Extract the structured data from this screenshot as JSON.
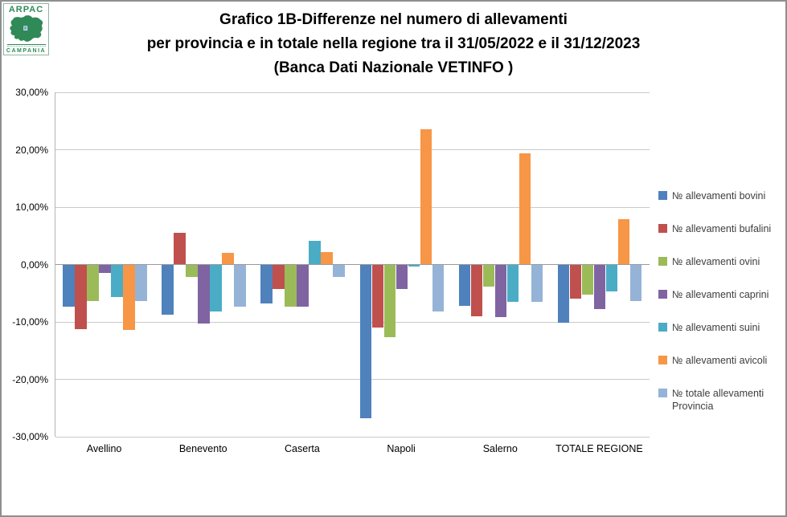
{
  "logo": {
    "top_text": "ARPAC",
    "bottom_text": "CAMPANIA"
  },
  "title": {
    "line1": "Grafico 1B-Differenze nel numero di allevamenti",
    "line2": "per provincia e in totale nella regione tra il 31/05/2022 e il 31/12/2023",
    "line3": "(Banca Dati Nazionale VETINFO )"
  },
  "chart_data": {
    "type": "bar",
    "title": "Grafico 1B-Differenze nel numero di allevamenti per provincia e in totale nella regione tra il 31/05/2022 e il 31/12/2023 (Banca Dati Nazionale VETINFO )",
    "categories": [
      "Avellino",
      "Benevento",
      "Caserta",
      "Napoli",
      "Salerno",
      "TOTALE REGIONE"
    ],
    "series": [
      {
        "name": "№ allevamenti bovini",
        "color": "#4F81BD",
        "values": [
          -7.4,
          -8.8,
          -6.8,
          -26.8,
          -7.2,
          -10.2
        ]
      },
      {
        "name": "№ allevamenti bufalini",
        "color": "#C0504D",
        "values": [
          -11.2,
          5.5,
          -4.3,
          -11.0,
          -9.0,
          -5.9
        ]
      },
      {
        "name": "№ allevamenti ovini",
        "color": "#9BBB59",
        "values": [
          -6.4,
          -2.2,
          -7.3,
          -12.6,
          -3.9,
          -5.2
        ]
      },
      {
        "name": "№ allevamenti caprini",
        "color": "#8064A2",
        "values": [
          -1.5,
          -10.3,
          -7.4,
          -4.2,
          -9.2,
          -7.8
        ]
      },
      {
        "name": "№ allevamenti suini",
        "color": "#4BACC6",
        "values": [
          -5.7,
          -8.2,
          4.1,
          -0.4,
          -6.5,
          -4.7
        ]
      },
      {
        "name": "№ allevamenti  avicoli",
        "color": "#F79646",
        "values": [
          -11.4,
          2.0,
          2.1,
          23.6,
          19.4,
          7.9
        ]
      },
      {
        "name": "№ totale allevamenti Provincia",
        "color": "#95B3D7",
        "values": [
          -6.3,
          -7.4,
          -2.2,
          -8.2,
          -6.5,
          -6.3
        ]
      }
    ],
    "y_ticks": [
      "30,00%",
      "20,00%",
      "10,00%",
      "0,00%",
      "-10,00%",
      "-20,00%",
      "-30,00%"
    ],
    "ylim": [
      -30,
      30
    ],
    "y_unit": "percent",
    "grid": true,
    "legend_position": "right",
    "xlabel": "",
    "ylabel": ""
  },
  "colors": {
    "gridline": "#CACACA",
    "zero_line": "#9A9A9A",
    "axis_line": "#B4B4B4",
    "logo_green": "#2F8A57"
  }
}
